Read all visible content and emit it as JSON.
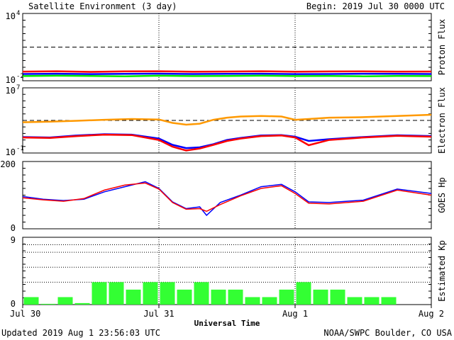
{
  "header": {
    "title": "Satellite Environment (3 day)",
    "begin": "Begin:  2019 Jul 30 0000 UTC"
  },
  "footer": {
    "updated": "Updated 2019 Aug  1 23:56:03 UTC",
    "credit": "NOAA/SWPC Boulder, CO USA"
  },
  "colors": {
    "red": "#ff0000",
    "blue": "#0000ff",
    "green": "#00ee00",
    "orange": "#ff9900",
    "bar": "#33ff33"
  },
  "chart_data": [
    {
      "type": "line",
      "panel": "proton",
      "ylabel": "Proton Flux",
      "yscale": "log",
      "yticks": [
        "10",
        "10"
      ],
      "ytick_exponents": [
        "4",
        "-2"
      ],
      "ylim": [
        0.01,
        10000
      ],
      "threshold": 10,
      "x": [
        0,
        0.25,
        0.5,
        0.75,
        1,
        1.25,
        1.5,
        1.75,
        2,
        2.25,
        2.5,
        2.75,
        3
      ],
      "series": [
        {
          "color": "#ff0000",
          "values": [
            0.065,
            0.07,
            0.062,
            0.068,
            0.07,
            0.064,
            0.066,
            0.07,
            0.063,
            0.067,
            0.069,
            0.065,
            0.066
          ]
        },
        {
          "color": "#0000ff",
          "values": [
            0.04,
            0.042,
            0.039,
            0.041,
            0.043,
            0.04,
            0.041,
            0.042,
            0.039,
            0.04,
            0.042,
            0.041,
            0.04
          ]
        },
        {
          "color": "#00ee00",
          "values": [
            0.026,
            0.028,
            0.027,
            0.025,
            0.028,
            0.026,
            0.027,
            0.028,
            0.026,
            0.027,
            0.025,
            0.027,
            0.026
          ]
        }
      ]
    },
    {
      "type": "line",
      "panel": "electron",
      "ylabel": "Electron Flux",
      "yscale": "log",
      "yticks": [
        "10",
        "10"
      ],
      "ytick_exponents": [
        "7",
        "-1"
      ],
      "ylim": [
        0.1,
        10000000
      ],
      "threshold": 1000,
      "x": [
        0,
        0.2,
        0.4,
        0.6,
        0.8,
        1.0,
        1.1,
        1.2,
        1.3,
        1.4,
        1.5,
        1.6,
        1.75,
        1.9,
        2.0,
        2.1,
        2.25,
        2.5,
        2.75,
        3.0
      ],
      "series": [
        {
          "color": "#ff9900",
          "values": [
            600,
            700,
            900,
            1200,
            1500,
            1300,
            500,
            300,
            400,
            1200,
            2200,
            3000,
            3500,
            3000,
            1200,
            1500,
            2200,
            2500,
            3500,
            5000
          ]
        },
        {
          "color": "#0000ff",
          "values": [
            9,
            8,
            14,
            20,
            18,
            6,
            1,
            0.4,
            0.5,
            1.2,
            4,
            7,
            14,
            16,
            10,
            3,
            5,
            9,
            15,
            12
          ]
        },
        {
          "color": "#ff0000",
          "values": [
            8,
            7,
            12,
            18,
            16,
            4,
            0.6,
            0.2,
            0.35,
            1.0,
            3,
            6,
            12,
            14,
            8,
            0.9,
            4,
            8,
            13,
            10
          ]
        }
      ]
    },
    {
      "type": "line",
      "panel": "hp",
      "ylabel": "GOES Hp",
      "yscale": "linear",
      "yticks": [
        "200",
        "0"
      ],
      "ylim": [
        0,
        200
      ],
      "x": [
        0,
        0.15,
        0.3,
        0.45,
        0.6,
        0.75,
        0.9,
        1.0,
        1.1,
        1.2,
        1.3,
        1.35,
        1.45,
        1.6,
        1.75,
        1.9,
        2.0,
        2.1,
        2.25,
        2.5,
        2.75,
        3.0
      ],
      "series": [
        {
          "color": "#0000ff",
          "values": [
            96,
            88,
            84,
            88,
            110,
            125,
            140,
            120,
            80,
            60,
            65,
            40,
            78,
            100,
            125,
            132,
            110,
            80,
            78,
            85,
            118,
            105
          ]
        },
        {
          "color": "#ff0000",
          "values": [
            92,
            86,
            82,
            90,
            115,
            130,
            136,
            118,
            78,
            58,
            60,
            52,
            72,
            98,
            120,
            128,
            105,
            76,
            74,
            82,
            115,
            100
          ]
        }
      ]
    },
    {
      "type": "bar",
      "panel": "kp",
      "ylabel": "Estimated Kp",
      "yticks": [
        "9",
        "0"
      ],
      "ylim": [
        0,
        9
      ],
      "values": [
        1,
        0.1,
        1,
        0.2,
        3,
        3,
        2,
        3,
        3,
        2,
        3,
        2,
        2,
        1,
        1,
        2,
        3,
        2,
        2,
        1,
        1,
        1,
        0,
        0
      ]
    }
  ],
  "xaxis": {
    "ticks": [
      "Jul 30",
      "Jul 31",
      "Aug 1",
      "Aug 2"
    ],
    "label": "Universal Time",
    "xlim": [
      0,
      3
    ]
  }
}
